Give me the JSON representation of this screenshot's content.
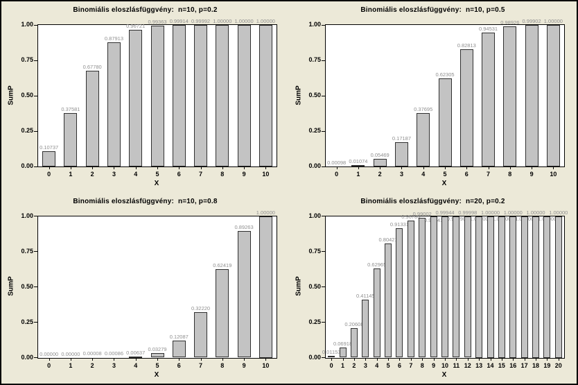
{
  "window": {
    "background_color": "#ece9d8",
    "border_color": "#000000"
  },
  "colors": {
    "plot_background": "#ffffff",
    "plot_border": "#000000",
    "bar_fill": "#c3c3c3",
    "bar_border": "#2f2f2f",
    "value_label": "#8f8f8f",
    "text": "#000000"
  },
  "chart_data": [
    {
      "type": "bar",
      "title": "Binomiális eloszlásfüggvény:  n=10, p=0.2",
      "xlabel": "X",
      "ylabel": "SumP",
      "ylim": [
        0,
        1.0
      ],
      "grid": false,
      "legend": null,
      "yticks": [
        "0.00",
        "0.25",
        "0.50",
        "0.75",
        "1.00"
      ],
      "categories": [
        "0",
        "1",
        "2",
        "3",
        "4",
        "5",
        "6",
        "7",
        "8",
        "9",
        "10"
      ],
      "values": [
        0.10737,
        0.37581,
        0.6778,
        0.87913,
        0.96721,
        0.99363,
        0.99914,
        0.99992,
        1.0,
        1.0,
        1.0
      ],
      "value_labels": [
        "0.10737",
        "0.37581",
        "0.67780",
        "0.87913",
        "0.96721",
        "0.99363",
        "0.99914",
        "0.99992",
        "1.00000",
        "1.00000",
        "1.00000"
      ]
    },
    {
      "type": "bar",
      "title": "Binomiális eloszlásfüggvény:  n=10, p=0.5",
      "xlabel": "X",
      "ylabel": "SumP",
      "ylim": [
        0,
        1.0
      ],
      "grid": false,
      "legend": null,
      "yticks": [
        "0.00",
        "0.25",
        "0.50",
        "0.75",
        "1.00"
      ],
      "categories": [
        "0",
        "1",
        "2",
        "3",
        "4",
        "5",
        "6",
        "7",
        "8",
        "9",
        "10"
      ],
      "values": [
        0.00098,
        0.01074,
        0.05469,
        0.17187,
        0.37695,
        0.62305,
        0.82813,
        0.94531,
        0.98926,
        0.99902,
        1.0
      ],
      "value_labels": [
        "0.00098",
        "0.01074",
        "0.05469",
        "0.17187",
        "0.37695",
        "0.62305",
        "0.82813",
        "0.94531",
        "0.98926",
        "0.99902",
        "1.00000"
      ]
    },
    {
      "type": "bar",
      "title": "Binomiális eloszlásfüggvény:  n=10, p=0.8",
      "xlabel": "X",
      "ylabel": "SumP",
      "ylim": [
        0,
        1.0
      ],
      "grid": false,
      "legend": null,
      "yticks": [
        "0.00",
        "0.25",
        "0.50",
        "0.75",
        "1.00"
      ],
      "categories": [
        "0",
        "1",
        "2",
        "3",
        "4",
        "5",
        "6",
        "7",
        "8",
        "9",
        "10"
      ],
      "values": [
        0.0,
        0.0,
        8e-05,
        0.00086,
        0.00637,
        0.03279,
        0.12087,
        0.3222,
        0.62419,
        0.89263,
        1.0
      ],
      "value_labels": [
        "0.00000",
        "0.00000",
        "0.00008",
        "0.00086",
        "0.00637",
        "0.03279",
        "0.12087",
        "0.32220",
        "0.62419",
        "0.89263",
        "1.00000"
      ]
    },
    {
      "type": "bar",
      "title": "Binomiális eloszlásfüggvény:  n=20, p=0.2",
      "xlabel": "X",
      "ylabel": "SumP",
      "ylim": [
        0,
        1.0
      ],
      "grid": false,
      "legend": null,
      "yticks": [
        "0.00",
        "0.25",
        "0.50",
        "0.75",
        "1.00"
      ],
      "categories": [
        "0",
        "1",
        "2",
        "3",
        "4",
        "5",
        "6",
        "7",
        "8",
        "9",
        "10",
        "11",
        "12",
        "13",
        "14",
        "15",
        "16",
        "17",
        "18",
        "19",
        "20"
      ],
      "values": [
        0.01153,
        0.06918,
        0.20608,
        0.41145,
        0.62965,
        0.80421,
        0.91331,
        0.96786,
        0.99002,
        0.99741,
        0.99944,
        0.9999,
        0.99998,
        1.0,
        1.0,
        1.0,
        1.0,
        1.0,
        1.0,
        1.0,
        1.0
      ],
      "value_labels": [
        "0.01153",
        "0.06918",
        "0.20608",
        "0.41145",
        "0.62965",
        "0.80421",
        "0.91331",
        "0.96786",
        "0.99002",
        "0.99741",
        "0.99944",
        "0.99990",
        "0.99998",
        "1.00000",
        "1.00000",
        "1.00000",
        "1.00000",
        "1.00000",
        "1.00000",
        "1.00000",
        "1.00000"
      ]
    }
  ]
}
